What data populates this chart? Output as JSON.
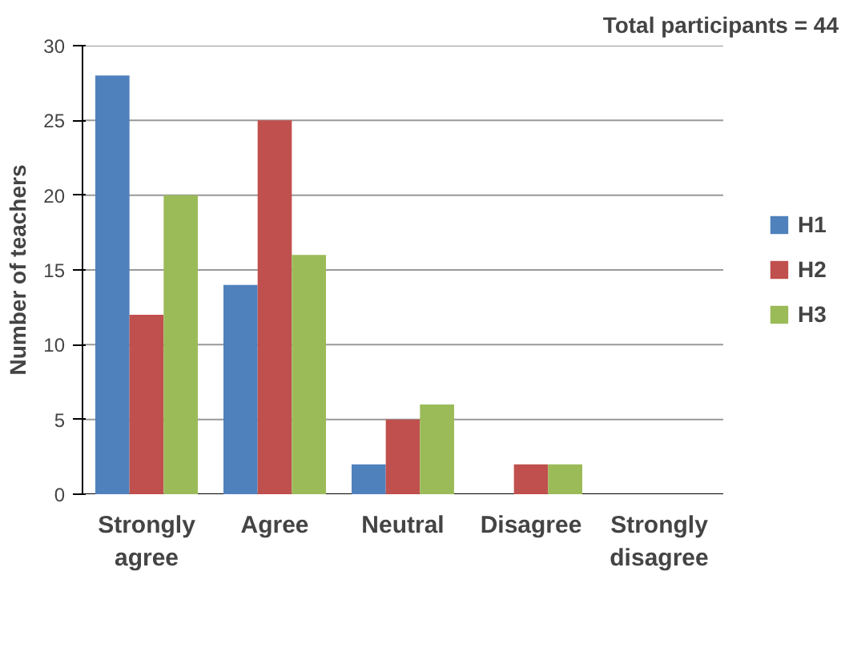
{
  "chart_data": {
    "type": "bar",
    "categories": [
      "Strongly agree",
      "Agree",
      "Neutral",
      "Disagree",
      "Strongly disagree"
    ],
    "series": [
      {
        "name": "H1",
        "color": "#4f81bd",
        "values": [
          28,
          14,
          2,
          0,
          0
        ]
      },
      {
        "name": "H2",
        "color": "#c0504d",
        "values": [
          12,
          25,
          5,
          2,
          0
        ]
      },
      {
        "name": "H3",
        "color": "#9bbb59",
        "values": [
          20,
          16,
          6,
          2,
          0
        ]
      }
    ],
    "ylabel": "Number of teachers",
    "ylim": [
      0,
      30
    ],
    "yticks": [
      0,
      5,
      10,
      15,
      20,
      25,
      30
    ],
    "grid": "y",
    "legend": "right",
    "annotations": [
      "Total participants = 44"
    ]
  }
}
